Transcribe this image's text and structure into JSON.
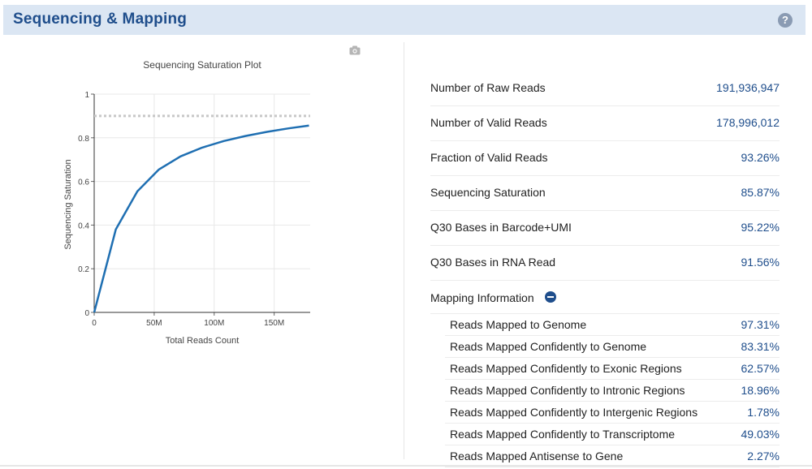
{
  "header": {
    "title": "Sequencing & Mapping",
    "help_glyph": "?"
  },
  "metrics": [
    {
      "label": "Number of Raw Reads",
      "value": "191,936,947"
    },
    {
      "label": "Number of Valid Reads",
      "value": "178,996,012"
    },
    {
      "label": "Fraction of Valid Reads",
      "value": "93.26%"
    },
    {
      "label": "Sequencing Saturation",
      "value": "85.87%"
    },
    {
      "label": "Q30 Bases in Barcode+UMI",
      "value": "95.22%"
    },
    {
      "label": "Q30 Bases in RNA Read",
      "value": "91.56%"
    }
  ],
  "mapping": {
    "title": "Mapping Information",
    "rows": [
      {
        "label": "Reads Mapped to Genome",
        "value": "97.31%"
      },
      {
        "label": "Reads Mapped Confidently to Genome",
        "value": "83.31%"
      },
      {
        "label": "Reads Mapped Confidently to Exonic Regions",
        "value": "62.57%"
      },
      {
        "label": "Reads Mapped Confidently to Intronic Regions",
        "value": "18.96%"
      },
      {
        "label": "Reads Mapped Confidently to Intergenic Regions",
        "value": "1.78%"
      },
      {
        "label": "Reads Mapped Confidently to Transcriptome",
        "value": "49.03%"
      },
      {
        "label": "Reads Mapped Antisense to Gene",
        "value": "2.27%"
      }
    ]
  },
  "chart_data": {
    "type": "line",
    "title": "Sequencing Saturation Plot",
    "xlabel": "Total Reads Count",
    "ylabel": "Sequencing Saturation",
    "xlim": [
      0,
      180000000
    ],
    "ylim": [
      0,
      1
    ],
    "x_ticks": [
      0,
      50000000,
      100000000,
      150000000
    ],
    "x_tick_labels": [
      "0",
      "50M",
      "100M",
      "150M"
    ],
    "y_ticks": [
      0,
      0.2,
      0.4,
      0.6,
      0.8,
      1
    ],
    "y_tick_labels": [
      "0",
      "0.2",
      "0.4",
      "0.6",
      "0.8",
      "1"
    ],
    "grid": true,
    "reference_line": 0.9,
    "series": [
      {
        "color": "#1f6fb2",
        "x": [
          0,
          18000000,
          36000000,
          54000000,
          72000000,
          90000000,
          108000000,
          126000000,
          144000000,
          162000000,
          179000000
        ],
        "y": [
          0,
          0.38,
          0.555,
          0.655,
          0.715,
          0.755,
          0.785,
          0.808,
          0.827,
          0.843,
          0.856
        ]
      }
    ]
  }
}
